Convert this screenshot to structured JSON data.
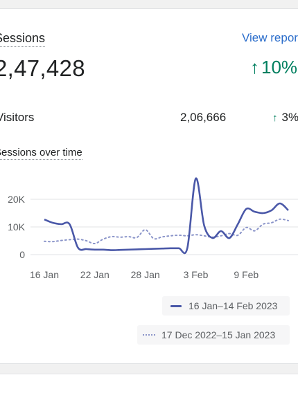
{
  "card": {
    "title": "Sessions",
    "view_report": "View report",
    "total": "2,47,428",
    "trend": {
      "arrow": "↑",
      "value": "10%"
    },
    "visitors": {
      "label": "Visitors",
      "value": "2,06,666",
      "trend_arrow": "↑",
      "trend_value": "3%"
    },
    "chart_title": "Sessions over time"
  },
  "colors": {
    "current": "#4a58a8",
    "previous": "#8a94c9",
    "positive": "#007f5f",
    "link": "#2c6ecb"
  },
  "chart_data": {
    "type": "line",
    "x": [
      "16 Jan",
      "17 Jan",
      "18 Jan",
      "19 Jan",
      "20 Jan",
      "21 Jan",
      "22 Jan",
      "23 Jan",
      "24 Jan",
      "25 Jan",
      "26 Jan",
      "27 Jan",
      "28 Jan",
      "29 Jan",
      "30 Jan",
      "31 Jan",
      "1 Feb",
      "2 Feb",
      "3 Feb",
      "4 Feb",
      "5 Feb",
      "6 Feb",
      "7 Feb",
      "8 Feb",
      "9 Feb",
      "10 Feb",
      "11 Feb",
      "12 Feb",
      "13 Feb",
      "14 Feb"
    ],
    "x_tick_labels": [
      "16 Jan",
      "22 Jan",
      "28 Jan",
      "3 Feb",
      "9 Feb"
    ],
    "y_tick_labels": [
      "0",
      "10K",
      "20K"
    ],
    "ylim": [
      0,
      20000
    ],
    "grid": true,
    "legend_placement": "bottom-right",
    "series": [
      {
        "name": "16 Jan–14 Feb 2023",
        "style": "solid",
        "values": [
          12700,
          11500,
          11000,
          11000,
          2500,
          2000,
          1800,
          1800,
          1600,
          1700,
          1800,
          1900,
          2000,
          2100,
          2200,
          2300,
          2300,
          2400,
          27500,
          10500,
          6000,
          8500,
          6000,
          11000,
          16500,
          15500,
          15000,
          16000,
          18500,
          16000
        ]
      },
      {
        "name": "17 Dec 2022–15 Jan 2023",
        "style": "dotted",
        "values": [
          4800,
          4700,
          5100,
          5400,
          5600,
          5000,
          4000,
          5600,
          6500,
          6300,
          6500,
          6200,
          9000,
          5800,
          6400,
          6800,
          7000,
          6800,
          7200,
          6800,
          6300,
          6800,
          7600,
          7000,
          9800,
          8600,
          11000,
          11500,
          12800,
          12300
        ]
      }
    ]
  }
}
